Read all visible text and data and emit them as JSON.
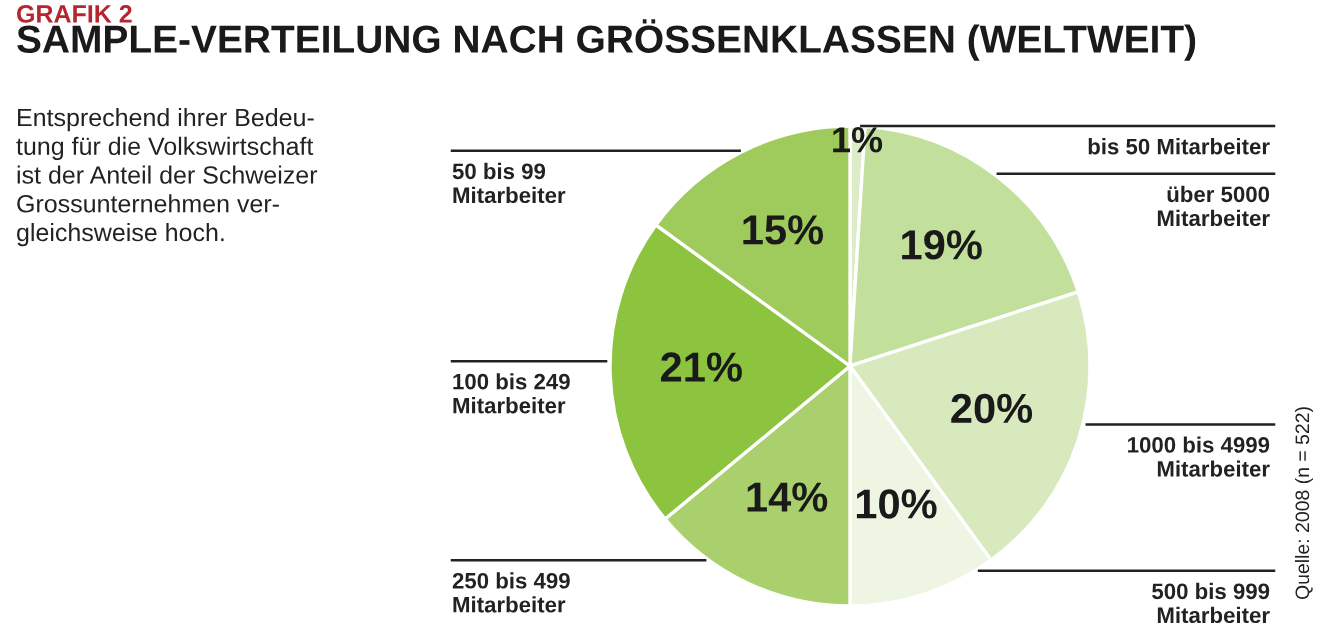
{
  "chart_data": {
    "type": "pie",
    "title": "SAMPLE-VERTEILUNG NACH GRÖSSENKLASSEN (WELTWEIT)",
    "annotations": [
      "GRAFIK 2",
      "Entsprechend ihrer Bedeu-\ntung für die Volkswirtschaft\nist der Anteil der Schweizer\nGrossunternehmen ver-\ngleichsweise hoch.",
      "Quelle: 2008 (n = 522)"
    ],
    "categories": [
      "bis 50 Mitarbeiter",
      "über 5000\nMitarbeiter",
      "1000 bis 4999\nMitarbeiter",
      "500 bis 999\nMitarbeiter",
      "250 bis 499\nMitarbeiter",
      "100 bis 249\nMitarbeiter",
      "50 bis 99\nMitarbeiter"
    ],
    "values": [
      1,
      19,
      20,
      10,
      14,
      21,
      15
    ],
    "value_labels": [
      "1%",
      "19%",
      "20%",
      "10%",
      "14%",
      "21%",
      "15%"
    ],
    "colors": [
      "#dcebc8",
      "#c3df9c",
      "#d7e9bd",
      "#eef5e3",
      "#a9d06d",
      "#8cc43f",
      "#9fcb5c"
    ]
  }
}
